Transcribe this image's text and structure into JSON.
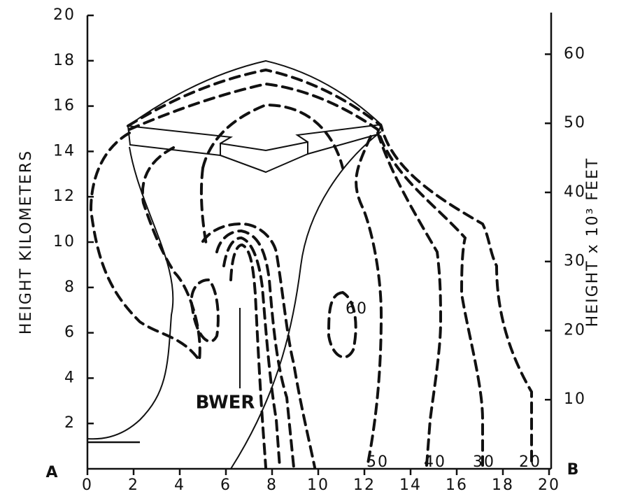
{
  "axes": {
    "x": {
      "ticks": [
        0,
        2,
        4,
        6,
        8,
        10,
        12,
        14,
        16,
        18,
        20
      ]
    },
    "y_left": {
      "label": "HEIGHT KILOMETERS",
      "ticks": [
        2,
        4,
        6,
        8,
        10,
        12,
        14,
        16,
        18,
        20
      ]
    },
    "y_right": {
      "label": "HEIGHT x 10³ FEET",
      "ticks": [
        10,
        20,
        30,
        40,
        50,
        60
      ]
    }
  },
  "corners": {
    "left": "A",
    "right": "B"
  },
  "annotation": "BWER",
  "contour_labels": [
    60,
    50,
    40,
    30,
    20
  ]
}
